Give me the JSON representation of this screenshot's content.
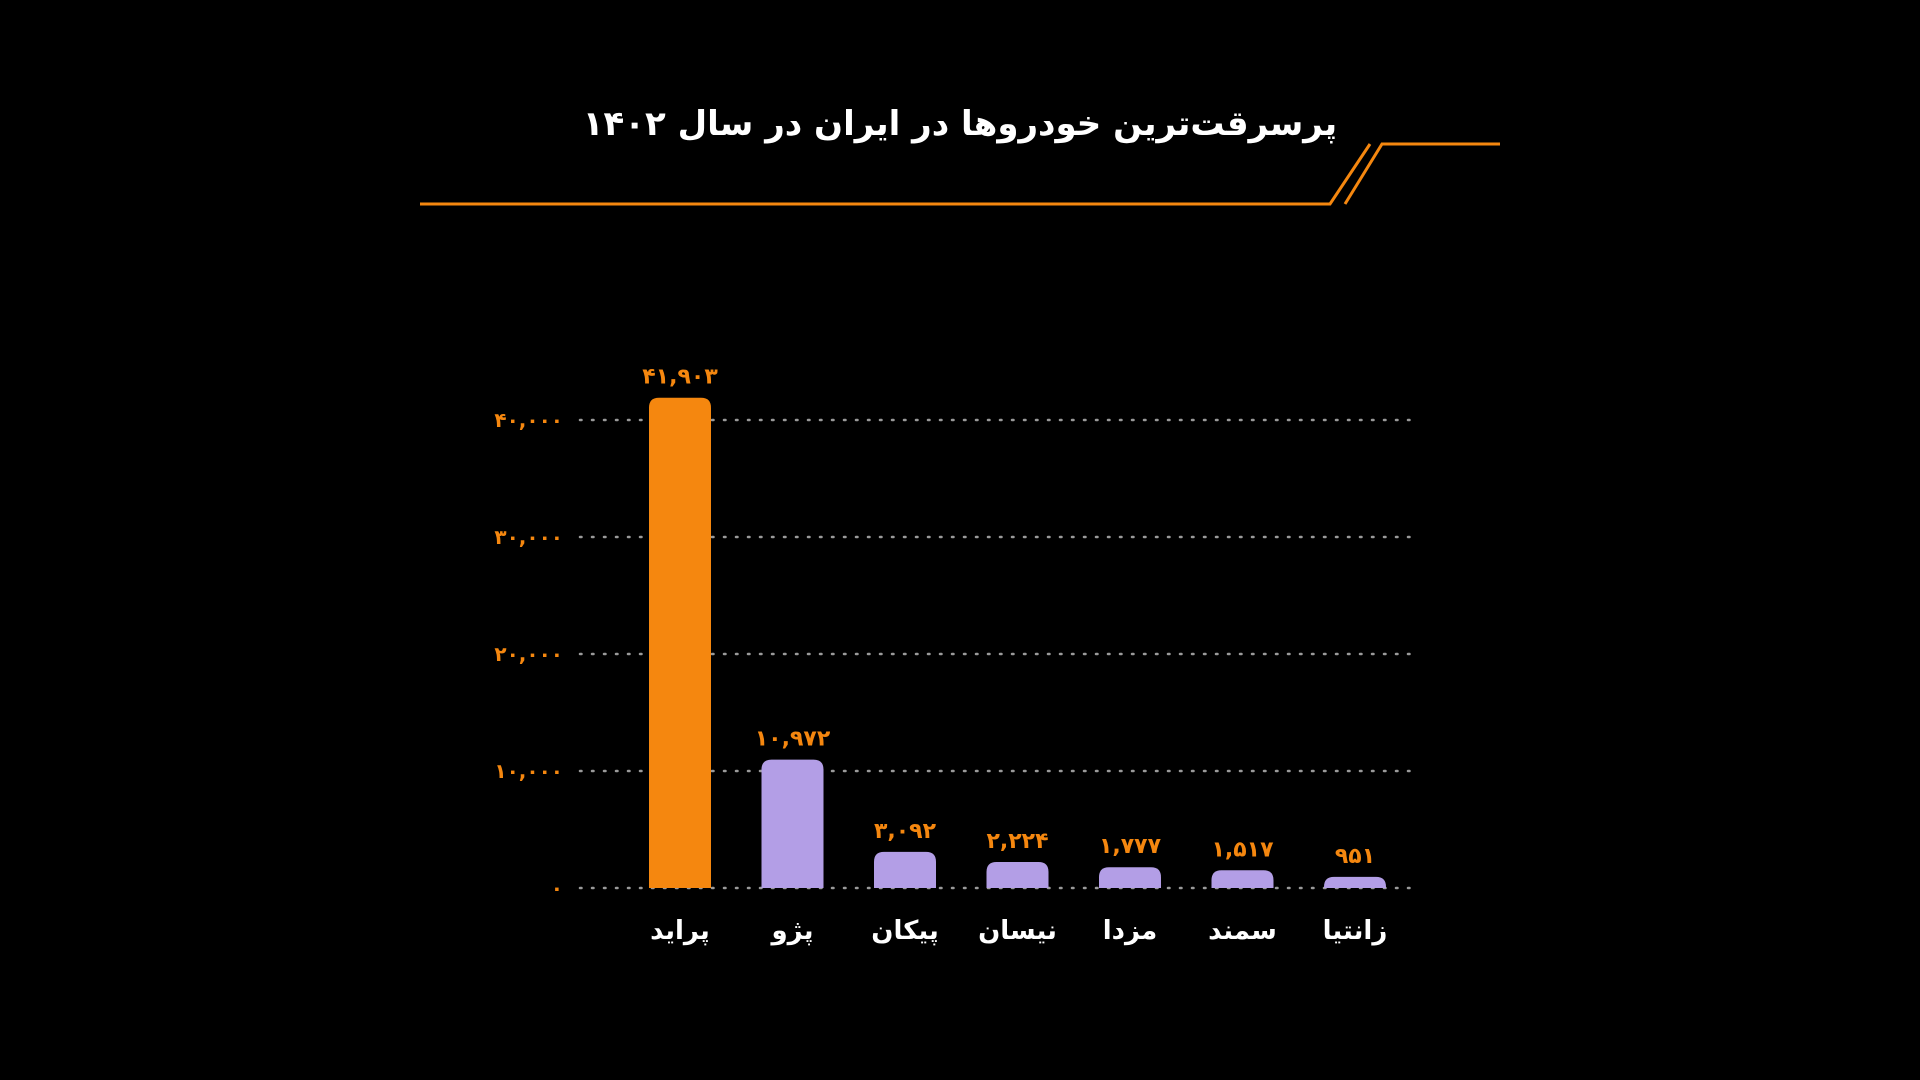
{
  "chart_data": {
    "type": "bar",
    "title": "پرسرقت‌ترین خودروها در ایران در سال ۱۴۰۲",
    "xlabel": "",
    "ylabel": "",
    "ylim": [
      0,
      40000
    ],
    "grid": true,
    "y_ticks": [
      {
        "value": 0,
        "label": "۰"
      },
      {
        "value": 10000,
        "label": "۱۰,۰۰۰"
      },
      {
        "value": 20000,
        "label": "۲۰,۰۰۰"
      },
      {
        "value": 30000,
        "label": "۳۰,۰۰۰"
      },
      {
        "value": 40000,
        "label": "۴۰,۰۰۰"
      }
    ],
    "categories": [
      "پراید",
      "پژو",
      "پیکان",
      "نیسان",
      "مزدا",
      "سمند",
      "زانتیا"
    ],
    "values": [
      41903,
      10972,
      3092,
      2224,
      1777,
      1517,
      951
    ],
    "value_labels": [
      "۴۱,۹۰۳",
      "۱۰,۹۷۲",
      "۳,۰۹۲",
      "۲,۲۲۴",
      "۱,۷۷۷",
      "۱,۵۱۷",
      "۹۵۱"
    ],
    "colors": {
      "background": "#000000",
      "accent": "#f5870f",
      "bar_highlight": "#f5870f",
      "bar_default": "#b39ee6",
      "text": "#ffffff",
      "grid": "#9a9a9a"
    }
  }
}
